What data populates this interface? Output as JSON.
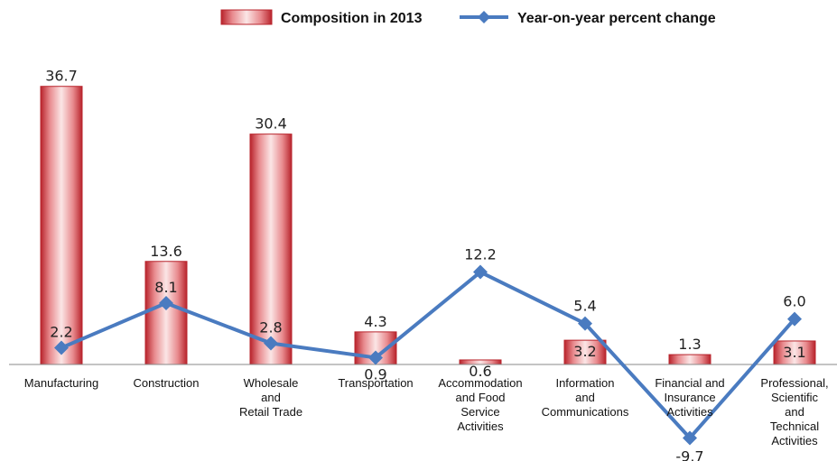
{
  "chart_data": {
    "type": "bar",
    "categories": [
      [
        "Manufacturing"
      ],
      [
        "Construction"
      ],
      [
        "Wholesale",
        "and",
        "Retail Trade"
      ],
      [
        "Transportation"
      ],
      [
        "Accommodation",
        "and Food",
        "Service",
        "Activities"
      ],
      [
        "Information",
        "and",
        "Communications"
      ],
      [
        "Financial and",
        "Insurance",
        "Activities"
      ],
      [
        "Professional,",
        "Scientific",
        "and",
        "Technical",
        "Activities"
      ]
    ],
    "series": [
      {
        "name": "Composition in 2013",
        "type": "bar",
        "color": "#c8323a",
        "values": [
          36.7,
          13.6,
          30.4,
          4.3,
          0.6,
          3.2,
          1.3,
          3.1
        ],
        "labels": [
          "36.7",
          "13.6",
          "30.4",
          "4.3",
          "0.6",
          "3.2",
          "1.3",
          "3.1"
        ]
      },
      {
        "name": "Year-on-year percent change",
        "type": "line",
        "color": "#4a7bc0",
        "values": [
          2.2,
          8.1,
          2.8,
          0.9,
          12.2,
          5.4,
          -9.7,
          6.0
        ],
        "labels": [
          "2.2",
          "8.1",
          "2.8",
          "0.9",
          "12.2",
          "5.4",
          "-9.7",
          "6.0"
        ]
      }
    ],
    "ylim": [
      -10,
      40
    ],
    "legend_position": "top",
    "grid": false
  }
}
